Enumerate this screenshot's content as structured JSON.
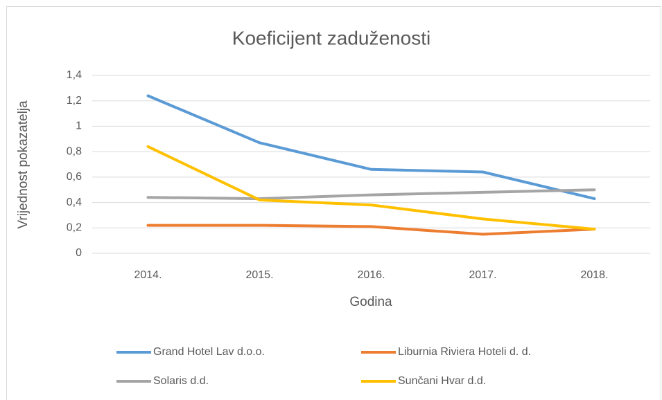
{
  "chart_data": {
    "type": "line",
    "title": "Koeficijent zaduženosti",
    "x_label": "Godina",
    "y_label": "Vrijednost pokazatelja",
    "categories": [
      "2014.",
      "2015.",
      "2016.",
      "2017.",
      "2018."
    ],
    "series": [
      {
        "name": "Grand Hotel Lav d.o.o.",
        "color": "#5b9bd5",
        "values": [
          1.24,
          0.87,
          0.66,
          0.64,
          0.43
        ]
      },
      {
        "name": "Liburnia Riviera Hoteli d. d.",
        "color": "#ed7d31",
        "values": [
          0.22,
          0.22,
          0.21,
          0.15,
          0.19
        ]
      },
      {
        "name": "Solaris d.d.",
        "color": "#a5a5a5",
        "values": [
          0.44,
          0.43,
          0.46,
          0.48,
          0.5
        ]
      },
      {
        "name": "Sunčani Hvar d.d.",
        "color": "#ffc000",
        "values": [
          0.84,
          0.42,
          0.38,
          0.27,
          0.19
        ]
      }
    ],
    "ylim": [
      0,
      1.4
    ],
    "yticks": [
      0,
      {
        "value": 0.2,
        "label": "0,2"
      },
      {
        "value": 0.4,
        "label": "0,4"
      },
      {
        "value": 0.6,
        "label": "0,6"
      },
      {
        "value": 0.8,
        "label": "0,8"
      },
      1,
      {
        "value": 1.2,
        "label": "1,2"
      },
      {
        "value": 1.4,
        "label": "1,4"
      }
    ],
    "grid": true,
    "legend": "bottom"
  }
}
